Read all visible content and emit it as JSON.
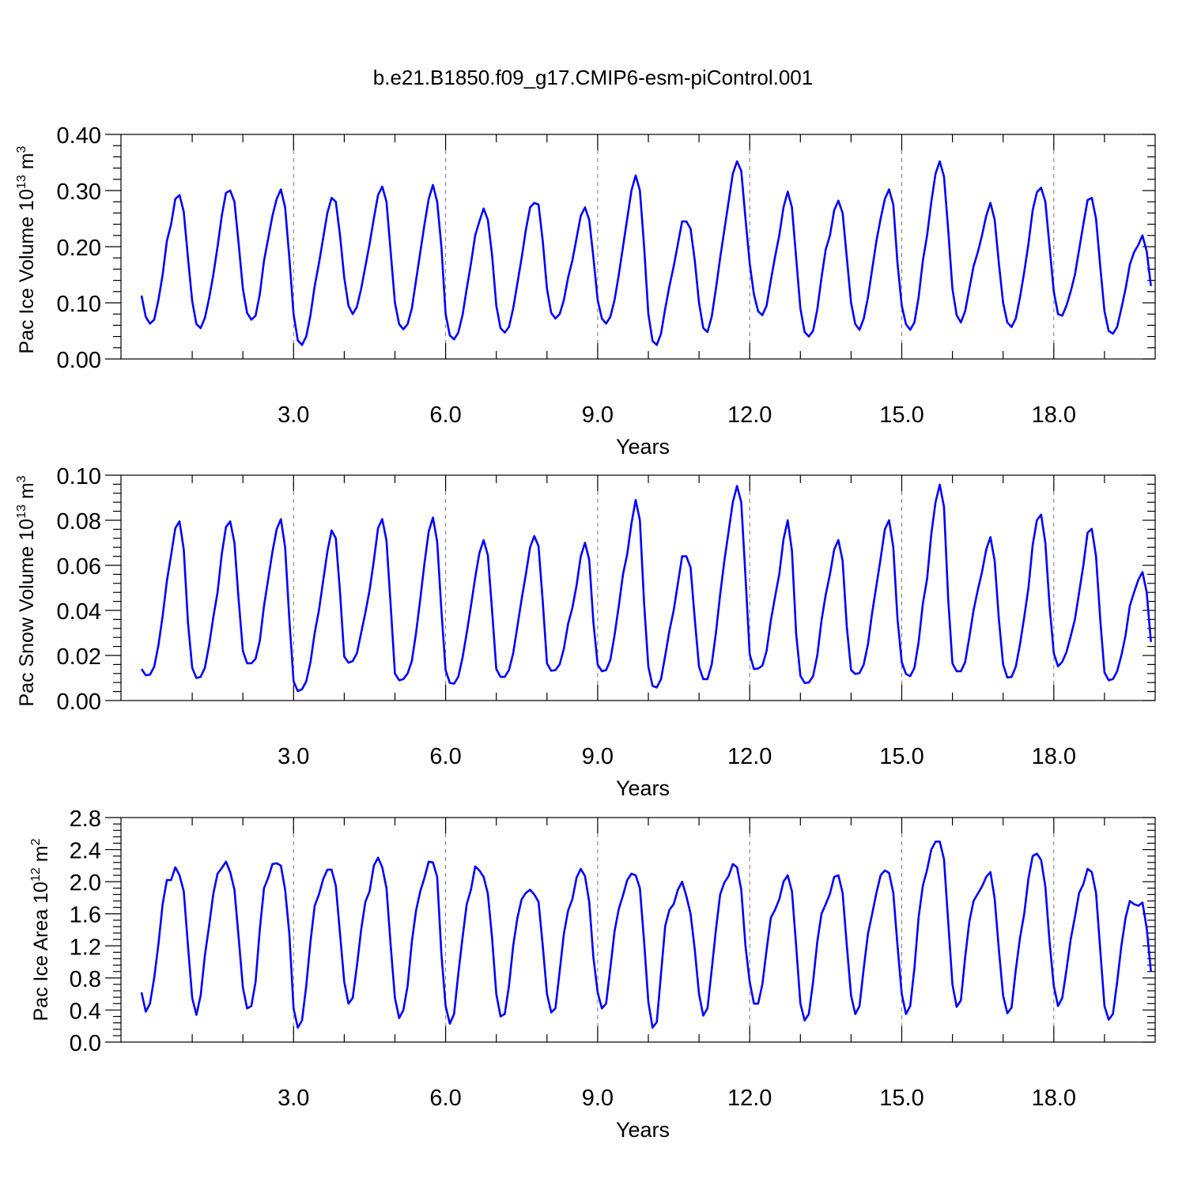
{
  "title": "b.e21.B1850.f09_g17.CMIP6-esm-piControl.001",
  "chart_data": [
    {
      "type": "line",
      "ylabel_main": "Pac Ice Volume 10",
      "ylabel_sup": "13",
      "ylabel_unit": " m",
      "ylabel_unit_sup": "3",
      "xlabel": "Years",
      "xlim": [
        0.0,
        20.0
      ],
      "ylim": [
        0.0,
        0.4
      ],
      "xticks": [
        "3.0",
        "6.0",
        "9.0",
        "12.0",
        "15.0",
        "18.0"
      ],
      "yticks": [
        "0.00",
        "0.10",
        "0.20",
        "0.30",
        "0.40"
      ],
      "grid_x": true,
      "series": [
        {
          "color": "#0000ff",
          "dt": 0.083333,
          "x0": 0.0,
          "values": [
            0.113,
            0.075,
            0.063,
            0.07,
            0.105,
            0.15,
            0.21,
            0.24,
            0.285,
            0.292,
            0.262,
            0.18,
            0.103,
            0.062,
            0.055,
            0.073,
            0.108,
            0.15,
            0.2,
            0.255,
            0.296,
            0.3,
            0.28,
            0.205,
            0.125,
            0.082,
            0.07,
            0.077,
            0.115,
            0.175,
            0.215,
            0.255,
            0.285,
            0.302,
            0.27,
            0.18,
            0.08,
            0.033,
            0.025,
            0.04,
            0.078,
            0.13,
            0.17,
            0.215,
            0.26,
            0.287,
            0.28,
            0.22,
            0.145,
            0.095,
            0.08,
            0.093,
            0.125,
            0.165,
            0.205,
            0.25,
            0.292,
            0.307,
            0.28,
            0.19,
            0.1,
            0.062,
            0.053,
            0.062,
            0.09,
            0.14,
            0.19,
            0.24,
            0.285,
            0.31,
            0.28,
            0.2,
            0.08,
            0.042,
            0.035,
            0.047,
            0.078,
            0.125,
            0.17,
            0.22,
            0.245,
            0.268,
            0.248,
            0.185,
            0.095,
            0.055,
            0.047,
            0.057,
            0.09,
            0.135,
            0.18,
            0.23,
            0.27,
            0.278,
            0.275,
            0.21,
            0.125,
            0.082,
            0.072,
            0.08,
            0.105,
            0.145,
            0.175,
            0.215,
            0.255,
            0.27,
            0.248,
            0.18,
            0.105,
            0.072,
            0.063,
            0.075,
            0.105,
            0.15,
            0.2,
            0.25,
            0.3,
            0.327,
            0.3,
            0.2,
            0.08,
            0.032,
            0.025,
            0.045,
            0.09,
            0.13,
            0.165,
            0.205,
            0.245,
            0.245,
            0.232,
            0.175,
            0.1,
            0.055,
            0.048,
            0.075,
            0.125,
            0.18,
            0.23,
            0.28,
            0.33,
            0.352,
            0.335,
            0.25,
            0.17,
            0.115,
            0.085,
            0.078,
            0.095,
            0.14,
            0.182,
            0.22,
            0.27,
            0.298,
            0.27,
            0.18,
            0.09,
            0.048,
            0.04,
            0.05,
            0.088,
            0.145,
            0.195,
            0.22,
            0.265,
            0.282,
            0.26,
            0.18,
            0.1,
            0.062,
            0.052,
            0.072,
            0.11,
            0.16,
            0.21,
            0.25,
            0.285,
            0.302,
            0.275,
            0.17,
            0.095,
            0.062,
            0.052,
            0.065,
            0.11,
            0.175,
            0.22,
            0.28,
            0.33,
            0.352,
            0.325,
            0.23,
            0.125,
            0.078,
            0.065,
            0.085,
            0.125,
            0.165,
            0.19,
            0.22,
            0.255,
            0.278,
            0.248,
            0.17,
            0.1,
            0.065,
            0.057,
            0.072,
            0.11,
            0.155,
            0.205,
            0.265,
            0.297,
            0.305,
            0.28,
            0.2,
            0.12,
            0.08,
            0.077,
            0.095,
            0.12,
            0.15,
            0.195,
            0.24,
            0.283,
            0.287,
            0.25,
            0.165,
            0.085,
            0.05,
            0.045,
            0.057,
            0.09,
            0.125,
            0.168,
            0.19,
            0.203,
            0.22,
            0.192,
            0.13
          ]
        }
      ]
    },
    {
      "type": "line",
      "ylabel_main": "Pac Snow Volume 10",
      "ylabel_sup": "13",
      "ylabel_unit": " m",
      "ylabel_unit_sup": "3",
      "xlabel": "Years",
      "xlim": [
        0.0,
        20.0
      ],
      "ylim": [
        0.0,
        0.1
      ],
      "xticks": [
        "3.0",
        "6.0",
        "9.0",
        "12.0",
        "15.0",
        "18.0"
      ],
      "yticks": [
        "0.00",
        "0.02",
        "0.04",
        "0.06",
        "0.08",
        "0.10"
      ],
      "grid_x": true,
      "series": [
        {
          "color": "#0000ff",
          "dt": 0.083333,
          "x0": 0.0,
          "values": [
            0.014,
            0.0112,
            0.0115,
            0.015,
            0.0245,
            0.0375,
            0.053,
            0.0645,
            0.0765,
            0.0795,
            0.067,
            0.0345,
            0.0145,
            0.01,
            0.0105,
            0.0145,
            0.0245,
            0.037,
            0.048,
            0.065,
            0.077,
            0.0795,
            0.07,
            0.0445,
            0.022,
            0.0165,
            0.0165,
            0.0185,
            0.0265,
            0.042,
            0.054,
            0.066,
            0.076,
            0.0805,
            0.068,
            0.036,
            0.0085,
            0.0042,
            0.005,
            0.0085,
            0.017,
            0.03,
            0.04,
            0.053,
            0.066,
            0.0755,
            0.072,
            0.048,
            0.0195,
            0.0168,
            0.0175,
            0.021,
            0.03,
            0.039,
            0.049,
            0.062,
            0.0765,
            0.0805,
            0.071,
            0.042,
            0.012,
            0.009,
            0.0095,
            0.012,
            0.0175,
            0.03,
            0.045,
            0.061,
            0.075,
            0.0812,
            0.0705,
            0.04,
            0.0135,
            0.0078,
            0.0075,
            0.0105,
            0.019,
            0.03,
            0.042,
            0.0545,
            0.0655,
            0.0712,
            0.0645,
            0.04,
            0.014,
            0.0105,
            0.0105,
            0.0135,
            0.021,
            0.033,
            0.045,
            0.056,
            0.068,
            0.073,
            0.0685,
            0.044,
            0.0165,
            0.0132,
            0.0135,
            0.016,
            0.023,
            0.034,
            0.041,
            0.051,
            0.064,
            0.07,
            0.0625,
            0.0345,
            0.016,
            0.013,
            0.0135,
            0.018,
            0.029,
            0.042,
            0.056,
            0.065,
            0.0785,
            0.089,
            0.08,
            0.043,
            0.015,
            0.0065,
            0.0058,
            0.0095,
            0.02,
            0.031,
            0.04,
            0.052,
            0.064,
            0.064,
            0.059,
            0.036,
            0.015,
            0.0095,
            0.0095,
            0.016,
            0.03,
            0.047,
            0.062,
            0.075,
            0.088,
            0.0952,
            0.088,
            0.055,
            0.0205,
            0.014,
            0.0142,
            0.0155,
            0.022,
            0.0355,
            0.046,
            0.056,
            0.0715,
            0.08,
            0.0665,
            0.0295,
            0.011,
            0.0078,
            0.008,
            0.0108,
            0.02,
            0.0355,
            0.047,
            0.056,
            0.067,
            0.0712,
            0.062,
            0.0325,
            0.0135,
            0.0118,
            0.0122,
            0.016,
            0.025,
            0.039,
            0.051,
            0.063,
            0.076,
            0.08,
            0.068,
            0.036,
            0.017,
            0.0118,
            0.0108,
            0.0145,
            0.026,
            0.043,
            0.054,
            0.074,
            0.088,
            0.0958,
            0.086,
            0.045,
            0.0165,
            0.013,
            0.013,
            0.017,
            0.028,
            0.04,
            0.049,
            0.057,
            0.067,
            0.0725,
            0.062,
            0.036,
            0.016,
            0.0102,
            0.0105,
            0.015,
            0.025,
            0.037,
            0.05,
            0.069,
            0.08,
            0.0825,
            0.07,
            0.042,
            0.021,
            0.0152,
            0.0172,
            0.0215,
            0.0285,
            0.036,
            0.048,
            0.06,
            0.0745,
            0.0762,
            0.064,
            0.036,
            0.0125,
            0.009,
            0.0095,
            0.013,
            0.02,
            0.029,
            0.042,
            0.048,
            0.0535,
            0.057,
            0.048,
            0.026
          ]
        }
      ]
    },
    {
      "type": "line",
      "ylabel_main": "Pac Ice Area 10",
      "ylabel_sup": "12",
      "ylabel_unit": " m",
      "ylabel_unit_sup": "2",
      "xlabel": "Years",
      "xlim": [
        0.0,
        20.0
      ],
      "ylim": [
        0.0,
        2.8
      ],
      "xticks": [
        "3.0",
        "6.0",
        "9.0",
        "12.0",
        "15.0",
        "18.0"
      ],
      "yticks": [
        "0.0",
        "0.4",
        "0.8",
        "1.2",
        "1.6",
        "2.0",
        "2.4",
        "2.8"
      ],
      "grid_x": true,
      "series": [
        {
          "color": "#0000ff",
          "dt": 0.083333,
          "x0": 0.0,
          "values": [
            0.62,
            0.38,
            0.48,
            0.8,
            1.22,
            1.72,
            2.02,
            2.02,
            2.18,
            2.08,
            1.88,
            1.2,
            0.55,
            0.34,
            0.58,
            1.08,
            1.45,
            1.85,
            2.1,
            2.17,
            2.25,
            2.12,
            1.9,
            1.3,
            0.68,
            0.42,
            0.45,
            0.75,
            1.4,
            1.92,
            2.05,
            2.22,
            2.23,
            2.2,
            1.9,
            1.35,
            0.42,
            0.18,
            0.27,
            0.7,
            1.25,
            1.7,
            1.84,
            2.03,
            2.15,
            2.15,
            1.95,
            1.35,
            0.75,
            0.48,
            0.55,
            0.95,
            1.4,
            1.75,
            1.88,
            2.2,
            2.3,
            2.18,
            1.92,
            1.2,
            0.55,
            0.3,
            0.4,
            0.7,
            1.25,
            1.64,
            1.88,
            2.05,
            2.25,
            2.24,
            2.06,
            1.1,
            0.45,
            0.23,
            0.35,
            0.85,
            1.3,
            1.72,
            1.9,
            2.19,
            2.14,
            2.06,
            1.85,
            1.3,
            0.6,
            0.32,
            0.35,
            0.7,
            1.2,
            1.55,
            1.78,
            1.86,
            1.9,
            1.84,
            1.75,
            1.2,
            0.6,
            0.37,
            0.42,
            0.88,
            1.35,
            1.64,
            1.78,
            2.05,
            2.16,
            2.07,
            1.75,
            1.05,
            0.62,
            0.42,
            0.48,
            0.92,
            1.38,
            1.66,
            1.83,
            2.02,
            2.1,
            2.08,
            1.92,
            1.25,
            0.5,
            0.18,
            0.25,
            0.85,
            1.45,
            1.65,
            1.72,
            1.9,
            2.0,
            1.82,
            1.6,
            1.15,
            0.6,
            0.33,
            0.42,
            0.9,
            1.4,
            1.84,
            1.99,
            2.07,
            2.22,
            2.18,
            1.9,
            1.2,
            0.75,
            0.48,
            0.48,
            0.72,
            1.15,
            1.55,
            1.65,
            1.78,
            2.0,
            2.08,
            1.88,
            1.2,
            0.48,
            0.27,
            0.35,
            0.75,
            1.25,
            1.6,
            1.72,
            1.85,
            2.06,
            2.08,
            1.86,
            1.2,
            0.58,
            0.35,
            0.45,
            0.92,
            1.35,
            1.6,
            1.86,
            2.08,
            2.14,
            2.11,
            1.86,
            1.2,
            0.6,
            0.35,
            0.45,
            0.92,
            1.56,
            1.95,
            2.15,
            2.4,
            2.5,
            2.5,
            2.28,
            1.5,
            0.72,
            0.44,
            0.52,
            1.05,
            1.5,
            1.76,
            1.85,
            1.94,
            2.06,
            2.12,
            1.79,
            1.15,
            0.58,
            0.36,
            0.43,
            0.9,
            1.3,
            1.6,
            2.04,
            2.32,
            2.35,
            2.27,
            1.94,
            1.25,
            0.7,
            0.45,
            0.55,
            0.9,
            1.28,
            1.56,
            1.86,
            1.97,
            2.16,
            2.12,
            1.86,
            1.15,
            0.45,
            0.28,
            0.35,
            0.75,
            1.2,
            1.55,
            1.76,
            1.72,
            1.7,
            1.74,
            1.42,
            0.88
          ]
        }
      ]
    }
  ]
}
